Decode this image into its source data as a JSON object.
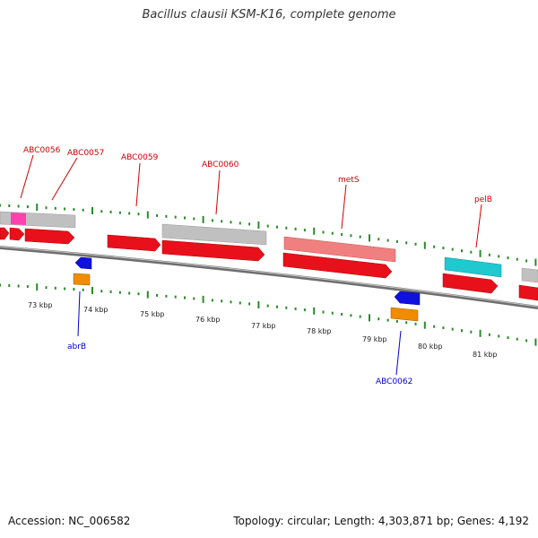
{
  "title": "Bacillus clausii KSM-K16, complete genome",
  "footer": {
    "accession": "Accession: NC_006582",
    "summary": "Topology: circular; Length: 4,303,871 bp; Genes: 4,192"
  },
  "colors": {
    "forward_cds": "#e8101a",
    "rrna_like": "#ff40b0",
    "pseudo": "#c0c0c0",
    "mets_highlight": "#f08080",
    "pelB_highlight": "#20c8d0",
    "reverse_blue": "#1010e0",
    "reverse_orange": "#f08c00",
    "tick_green": "#2a8a2a",
    "forward_label": "#cc0000",
    "reverse_label": "#0000cc",
    "backbone": "#808080"
  },
  "kbp_ticks": [
    "73 kbp",
    "74 kbp",
    "75 kbp",
    "76 kbp",
    "77 kbp",
    "78 kbp",
    "79 kbp",
    "80 kbp",
    "81 kbp"
  ],
  "forward_genes": [
    "ABC0056",
    "ABC0057",
    "ABC0059",
    "ABC0060",
    "metS",
    "pelB"
  ],
  "reverse_genes": [
    "abrB",
    "ABC0062"
  ]
}
